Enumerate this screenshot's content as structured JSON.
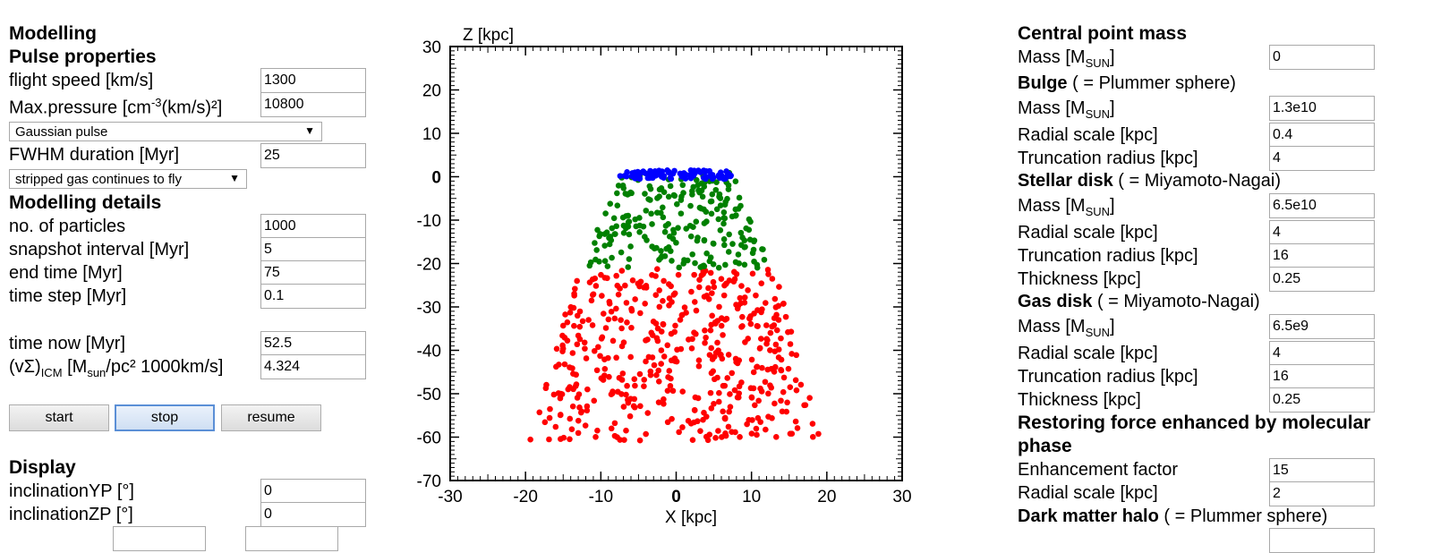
{
  "left": {
    "modelling_title": "Modelling",
    "pulse_title": "Pulse properties",
    "flight_speed": {
      "label": "flight speed [km/s]",
      "value": "1300"
    },
    "max_pressure": {
      "label_pre": "Max.pressure [cm",
      "label_sup": "-3",
      "label_post": "(km/s)²]",
      "value": "10800"
    },
    "pulse_shape": "Gaussian pulse",
    "fwhm": {
      "label": "FWHM duration [Myr]",
      "value": "25"
    },
    "stripped_mode": "stripped gas continues to fly",
    "details_title": "Modelling details",
    "particles": {
      "label": "no. of particles",
      "value": "1000"
    },
    "snapshot": {
      "label": "snapshot interval [Myr]",
      "value": "5"
    },
    "end_time": {
      "label": "end time [Myr]",
      "value": "75"
    },
    "time_step": {
      "label": "time step [Myr]",
      "value": "0.1"
    },
    "time_now": {
      "label": "time now [Myr]",
      "value": "52.5"
    },
    "vsigma": {
      "label_pre": "(vΣ)",
      "label_sub1": "ICM",
      "label_mid": " [M",
      "label_sub2": "sun",
      "label_post": "/pc² 1000km/s]",
      "value": "4.324"
    },
    "buttons": {
      "start": "start",
      "stop": "stop",
      "resume": "resume"
    },
    "display_title": "Display",
    "incl_yp": {
      "label": "inclinationYP [°]",
      "value": "0"
    },
    "incl_zp": {
      "label": "inclinationZP [°]",
      "value": "0"
    }
  },
  "right": {
    "central_title": "Central point mass",
    "central_mass": {
      "label_pre": "Mass [M",
      "label_sub": "SUN",
      "label_post": "]",
      "value": "0"
    },
    "bulge_title": "Bulge",
    "bulge_note": " ( = Plummer sphere)",
    "bulge_mass": {
      "label_pre": "Mass [M",
      "label_sub": "SUN",
      "label_post": "]",
      "value": "1.3e10"
    },
    "bulge_radial": {
      "label": "Radial scale [kpc]",
      "value": "0.4"
    },
    "bulge_trunc": {
      "label": "Truncation radius [kpc]",
      "value": "4"
    },
    "stellar_title": "Stellar disk",
    "stellar_note": " ( = Miyamoto-Nagai)",
    "stellar_mass": {
      "label_pre": "Mass [M",
      "label_sub": "SUN",
      "label_post": "]",
      "value": "6.5e10"
    },
    "stellar_radial": {
      "label": "Radial scale [kpc]",
      "value": "4"
    },
    "stellar_trunc": {
      "label": "Truncation radius [kpc]",
      "value": "16"
    },
    "stellar_thick": {
      "label": "Thickness [kpc]",
      "value": "0.25"
    },
    "gas_title": "Gas disk",
    "gas_note": " ( = Miyamoto-Nagai)",
    "gas_mass": {
      "label_pre": "Mass [M",
      "label_sub": "SUN",
      "label_post": "]",
      "value": "6.5e9"
    },
    "gas_radial": {
      "label": "Radial scale [kpc]",
      "value": "4"
    },
    "gas_trunc": {
      "label": "Truncation radius [kpc]",
      "value": "16"
    },
    "gas_thick": {
      "label": "Thickness [kpc]",
      "value": "0.25"
    },
    "restoring_title_1": "Restoring force enhanced by molecular",
    "restoring_title_2": "phase",
    "enh_factor": {
      "label": "Enhancement factor",
      "value": "15"
    },
    "enh_radial": {
      "label": "Radial scale [kpc]",
      "value": "2"
    },
    "halo_title": "Dark matter halo",
    "halo_note": " ( = Plummer sphere)"
  },
  "chart_data": {
    "type": "scatter",
    "xlabel": "X [kpc]",
    "ylabel": "Z [kpc]",
    "xlim": [
      -30,
      30
    ],
    "ylim": [
      -70,
      30
    ],
    "xticks": [
      -30,
      -20,
      -10,
      0,
      10,
      20,
      30
    ],
    "yticks": [
      30,
      20,
      10,
      0,
      -10,
      -20,
      -30,
      -40,
      -50,
      -60,
      -70
    ],
    "series": [
      {
        "color": "#ff0000",
        "description_region": {
          "z_top": -21,
          "z_bottom": -61,
          "halfwidth_top": 13,
          "halfwidth_bottom": 19.5
        },
        "count": 480
      },
      {
        "color": "#008000",
        "description_region": {
          "z_top": 1,
          "z_bottom": -21,
          "halfwidth_top": 7.5,
          "halfwidth_bottom": 12.5
        },
        "count": 230
      },
      {
        "color": "#0000ff",
        "description_region": {
          "z_top": 1.5,
          "z_bottom": -0.5,
          "halfwidth_top": 7.5,
          "halfwidth_bottom": 7.5
        },
        "count": 90
      }
    ]
  }
}
